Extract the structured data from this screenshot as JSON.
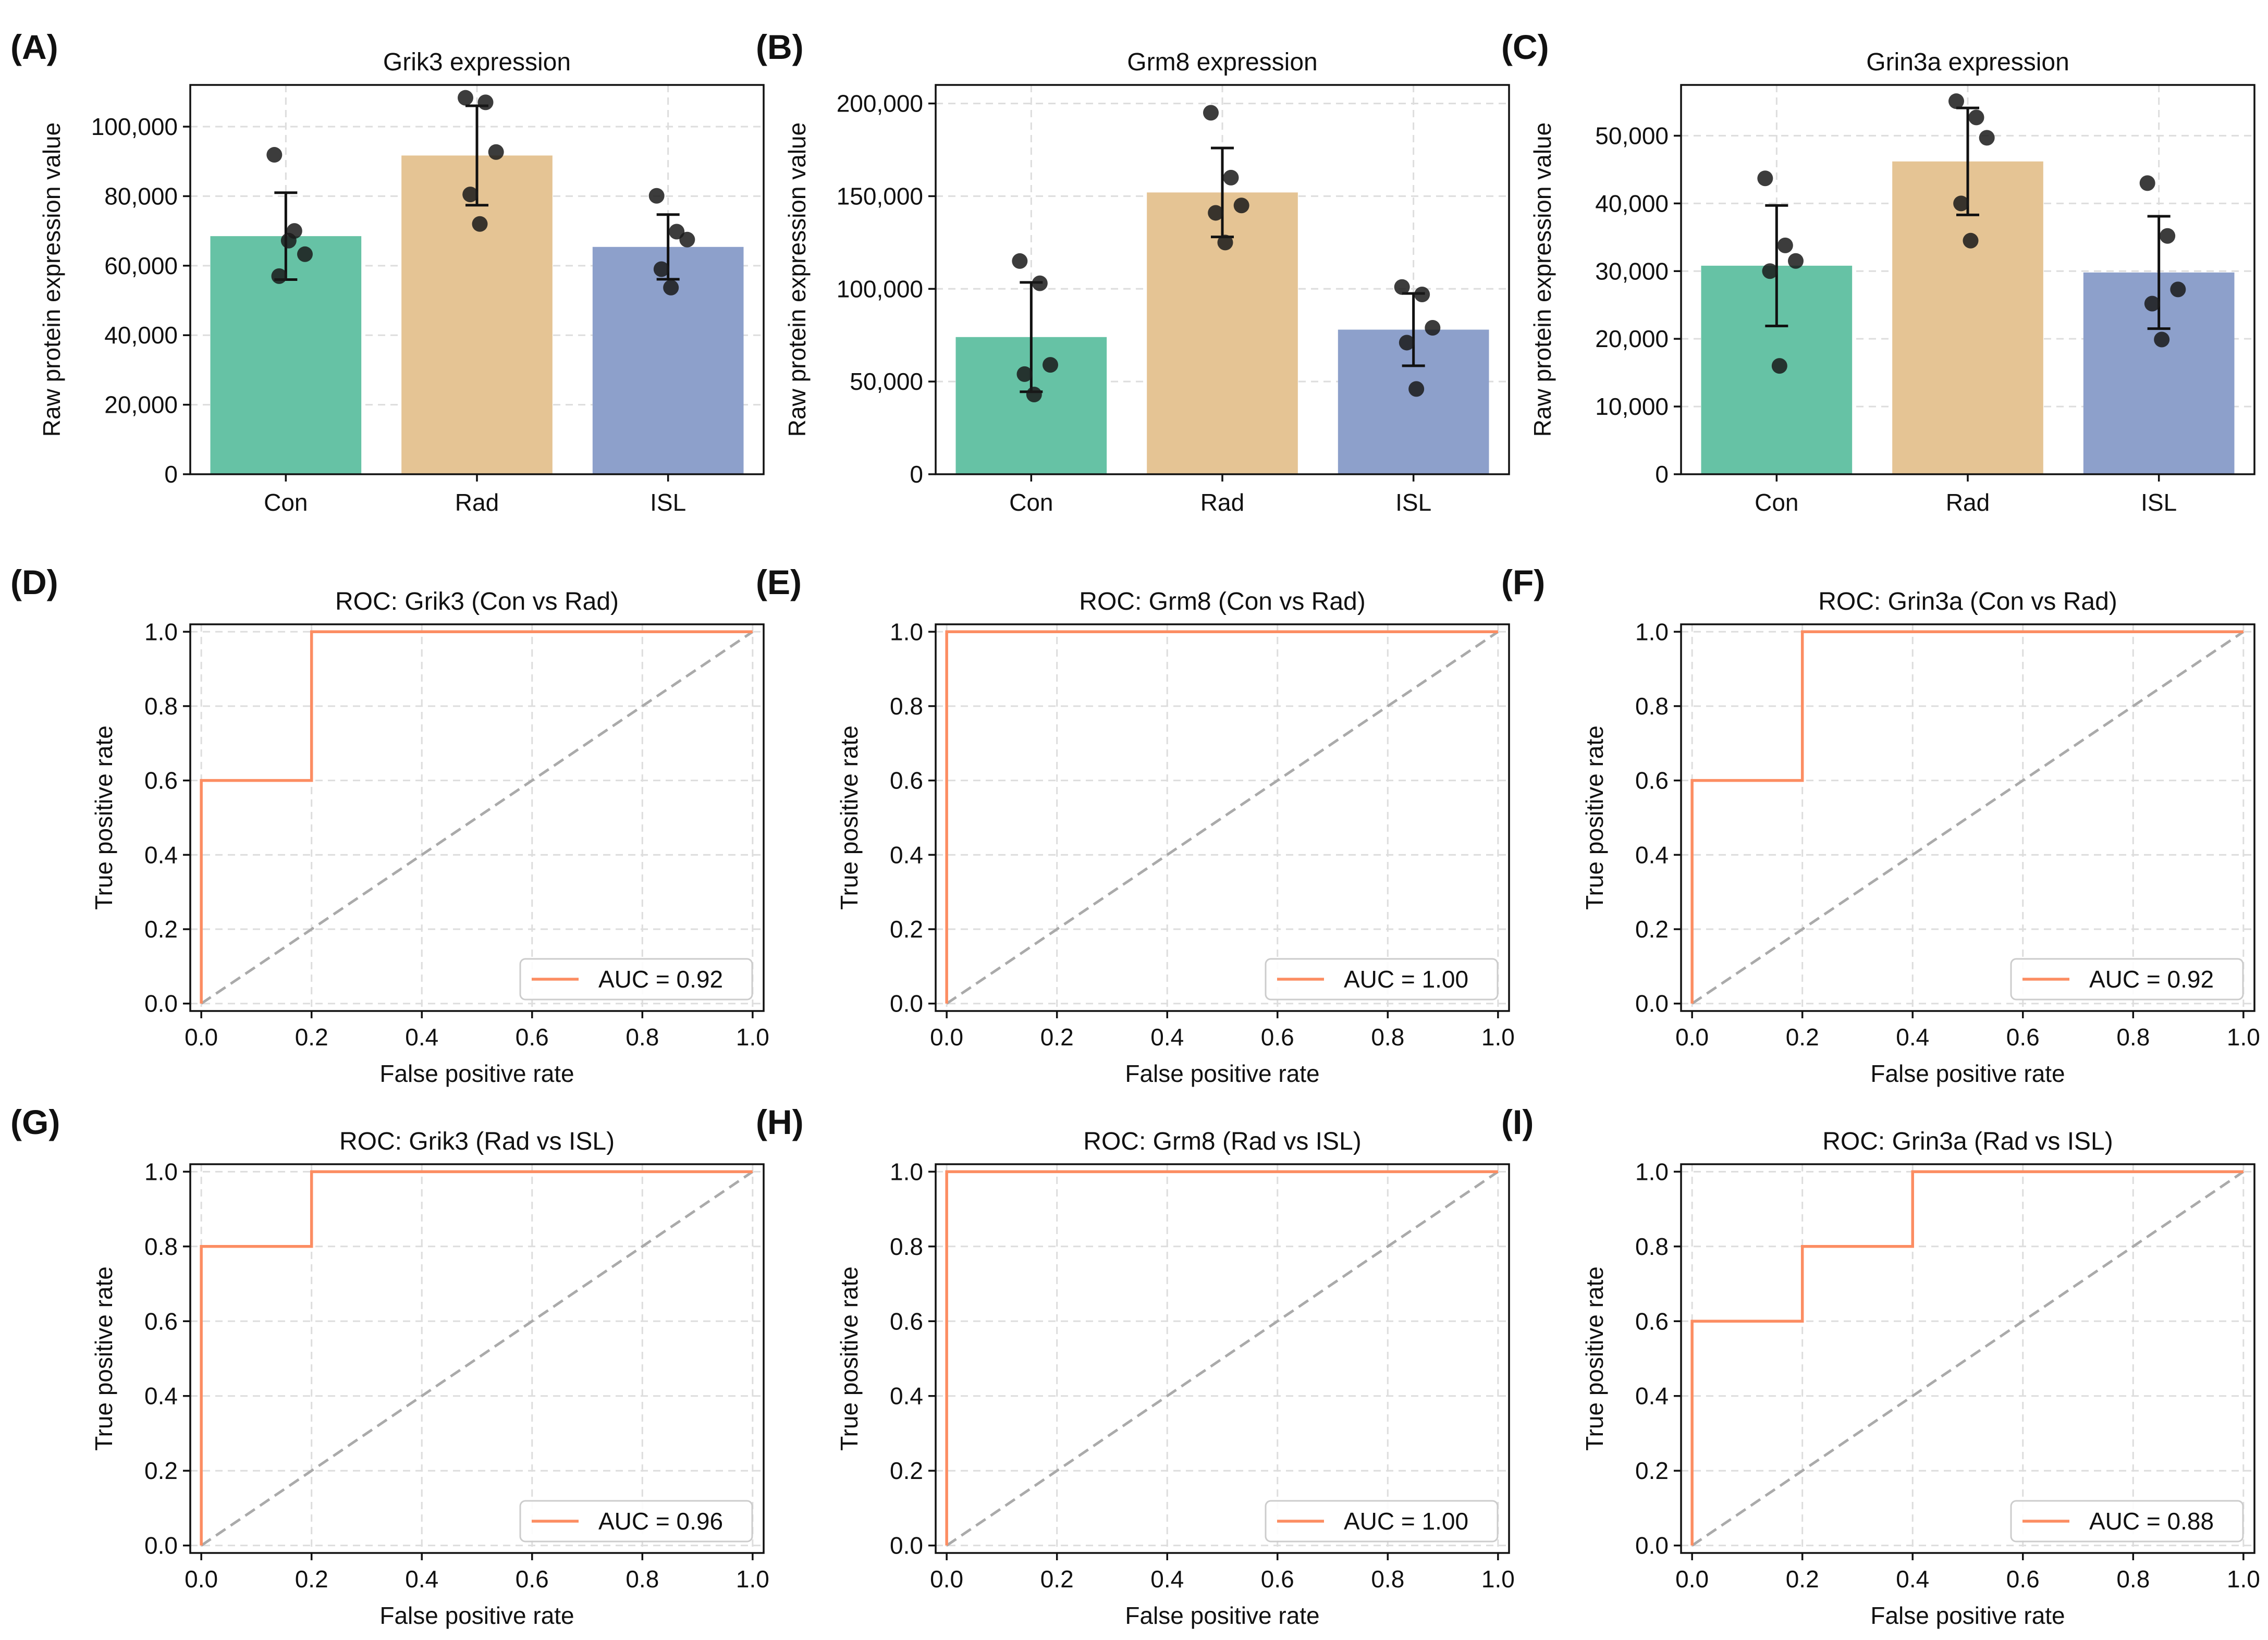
{
  "colors": {
    "Con": "#66c2a5",
    "Rad": "#e5c494",
    "ISL": "#8da0cb",
    "roc_line": "#fc8d62",
    "diagonal": "#aaaaaa",
    "grid": "#dddddd",
    "dots": "#1a1a1a"
  },
  "chart_data": [
    {
      "panel": "(A)",
      "type": "bar",
      "title": "Grik3 expression",
      "ylabel": "Raw protein expression value",
      "xlabel": "",
      "categories": [
        "Con",
        "Rad",
        "ISL"
      ],
      "values": [
        68500,
        91700,
        65400
      ],
      "sd": [
        12500,
        14300,
        9300
      ],
      "points": [
        [
          91900,
          70000,
          63300,
          57000,
          67200
        ],
        [
          108300,
          107000,
          92700,
          80500,
          72000
        ],
        [
          80100,
          69800,
          67500,
          59000,
          53700
        ]
      ],
      "ylim": [
        0,
        112000
      ],
      "yticks": [
        0,
        20000,
        40000,
        60000,
        80000,
        100000
      ],
      "ytick_labels": [
        "0",
        "20,000",
        "40,000",
        "60,000",
        "80,000",
        "100,000"
      ]
    },
    {
      "panel": "(B)",
      "type": "bar",
      "title": "Grm8 expression",
      "ylabel": "Raw protein expression value",
      "xlabel": "",
      "categories": [
        "Con",
        "Rad",
        "ISL"
      ],
      "values": [
        74000,
        152000,
        78000
      ],
      "sd": [
        29500,
        24000,
        19500
      ],
      "points": [
        [
          115000,
          103000,
          59000,
          54000,
          43000
        ],
        [
          195000,
          160000,
          145000,
          141000,
          125000
        ],
        [
          101000,
          97000,
          79000,
          71000,
          46000
        ]
      ],
      "ylim": [
        0,
        210000
      ],
      "yticks": [
        0,
        50000,
        100000,
        150000,
        200000
      ],
      "ytick_labels": [
        "0",
        "50,000",
        "100,000",
        "150,000",
        "200,000"
      ]
    },
    {
      "panel": "(C)",
      "type": "bar",
      "title": "Grin3a expression",
      "ylabel": "Raw protein expression value",
      "xlabel": "",
      "categories": [
        "Con",
        "Rad",
        "ISL"
      ],
      "values": [
        30800,
        46200,
        29800
      ],
      "sd": [
        8900,
        7900,
        8300
      ],
      "points": [
        [
          43700,
          33800,
          31500,
          30000,
          16000
        ],
        [
          55100,
          52700,
          49700,
          40000,
          34500
        ],
        [
          43000,
          35200,
          27300,
          25200,
          19900
        ]
      ],
      "ylim": [
        0,
        57500
      ],
      "yticks": [
        0,
        10000,
        20000,
        30000,
        40000,
        50000
      ],
      "ytick_labels": [
        "0",
        "10,000",
        "20,000",
        "30,000",
        "40,000",
        "50,000"
      ]
    },
    {
      "panel": "(D)",
      "type": "line",
      "title": "ROC: Grik3 (Con vs Rad)",
      "xlabel": "False positive rate",
      "ylabel": "True positive rate",
      "legend": "AUC = 0.92",
      "legend_loc": "lower-right",
      "fpr": [
        0,
        0,
        0.2,
        0.2,
        1
      ],
      "tpr": [
        0,
        0.6,
        0.6,
        1,
        1
      ],
      "xlim": [
        -0.02,
        1.02
      ],
      "ylim": [
        -0.02,
        1.02
      ],
      "ticks": [
        0,
        0.2,
        0.4,
        0.6,
        0.8,
        1.0
      ],
      "tick_labels": [
        "0.0",
        "0.2",
        "0.4",
        "0.6",
        "0.8",
        "1.0"
      ]
    },
    {
      "panel": "(E)",
      "type": "line",
      "title": "ROC: Grm8 (Con vs Rad)",
      "xlabel": "False positive rate",
      "ylabel": "True positive rate",
      "legend": "AUC = 1.00",
      "legend_loc": "lower-right",
      "fpr": [
        0,
        0,
        1
      ],
      "tpr": [
        0,
        1,
        1
      ],
      "xlim": [
        -0.02,
        1.02
      ],
      "ylim": [
        -0.02,
        1.02
      ],
      "ticks": [
        0,
        0.2,
        0.4,
        0.6,
        0.8,
        1.0
      ],
      "tick_labels": [
        "0.0",
        "0.2",
        "0.4",
        "0.6",
        "0.8",
        "1.0"
      ]
    },
    {
      "panel": "(F)",
      "type": "line",
      "title": "ROC: Grin3a (Con vs Rad)",
      "xlabel": "False positive rate",
      "ylabel": "True positive rate",
      "legend": "AUC = 0.92",
      "legend_loc": "lower-right",
      "fpr": [
        0,
        0,
        0.2,
        0.2,
        1
      ],
      "tpr": [
        0,
        0.6,
        0.6,
        1,
        1
      ],
      "xlim": [
        -0.02,
        1.02
      ],
      "ylim": [
        -0.02,
        1.02
      ],
      "ticks": [
        0,
        0.2,
        0.4,
        0.6,
        0.8,
        1.0
      ],
      "tick_labels": [
        "0.0",
        "0.2",
        "0.4",
        "0.6",
        "0.8",
        "1.0"
      ]
    },
    {
      "panel": "(G)",
      "type": "line",
      "title": "ROC: Grik3 (Rad vs ISL)",
      "xlabel": "False positive rate",
      "ylabel": "True positive rate",
      "legend": "AUC = 0.96",
      "legend_loc": "lower-right",
      "fpr": [
        0,
        0,
        0.2,
        0.2,
        1
      ],
      "tpr": [
        0,
        0.8,
        0.8,
        1,
        1
      ],
      "xlim": [
        -0.02,
        1.02
      ],
      "ylim": [
        -0.02,
        1.02
      ],
      "ticks": [
        0,
        0.2,
        0.4,
        0.6,
        0.8,
        1.0
      ],
      "tick_labels": [
        "0.0",
        "0.2",
        "0.4",
        "0.6",
        "0.8",
        "1.0"
      ]
    },
    {
      "panel": "(H)",
      "type": "line",
      "title": "ROC: Grm8 (Rad vs ISL)",
      "xlabel": "False positive rate",
      "ylabel": "True positive rate",
      "legend": "AUC = 1.00",
      "legend_loc": "lower-right",
      "fpr": [
        0,
        0,
        1
      ],
      "tpr": [
        0,
        1,
        1
      ],
      "xlim": [
        -0.02,
        1.02
      ],
      "ylim": [
        -0.02,
        1.02
      ],
      "ticks": [
        0,
        0.2,
        0.4,
        0.6,
        0.8,
        1.0
      ],
      "tick_labels": [
        "0.0",
        "0.2",
        "0.4",
        "0.6",
        "0.8",
        "1.0"
      ]
    },
    {
      "panel": "(I)",
      "type": "line",
      "title": "ROC: Grin3a (Rad vs ISL)",
      "xlabel": "False positive rate",
      "ylabel": "True positive rate",
      "legend": "AUC = 0.88",
      "legend_loc": "lower-right",
      "fpr": [
        0,
        0,
        0.2,
        0.2,
        0.4,
        0.4,
        1
      ],
      "tpr": [
        0,
        0.6,
        0.6,
        0.8,
        0.8,
        1,
        1
      ],
      "xlim": [
        -0.02,
        1.02
      ],
      "ylim": [
        -0.02,
        1.02
      ],
      "ticks": [
        0,
        0.2,
        0.4,
        0.6,
        0.8,
        1.0
      ],
      "tick_labels": [
        "0.0",
        "0.2",
        "0.4",
        "0.6",
        "0.8",
        "1.0"
      ]
    }
  ]
}
